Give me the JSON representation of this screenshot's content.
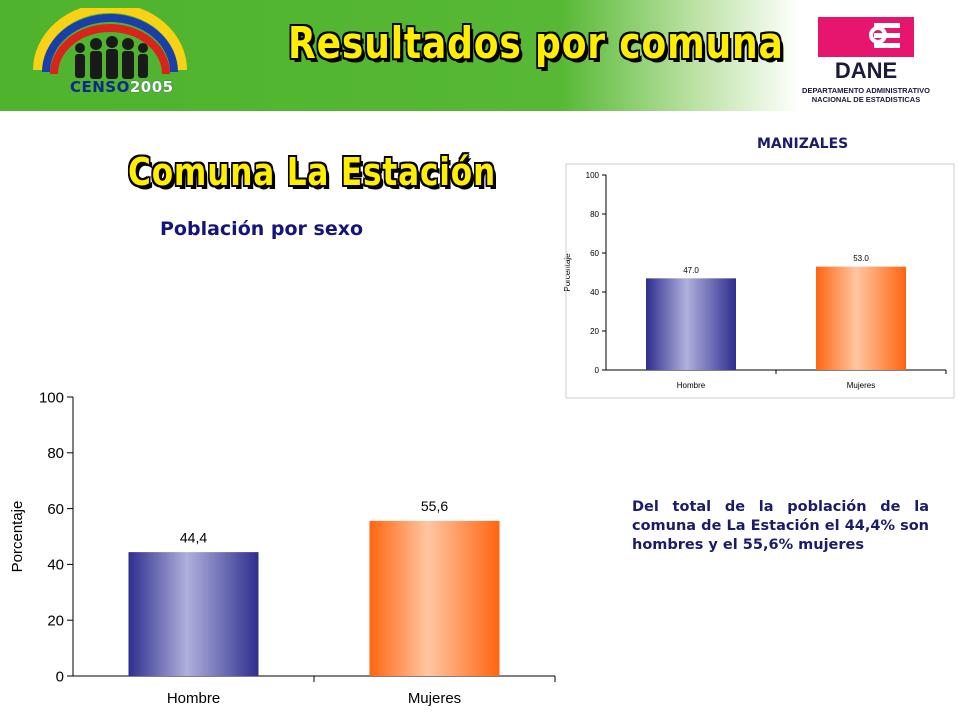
{
  "header": {
    "title": "Resultados por comuna",
    "censo_logo_text": "CENSO",
    "censo_logo_year": "2005",
    "dane_logo_text": "DANE",
    "dane_caption_line1": "DEPARTAMENTO ADMINISTRATIVO",
    "dane_caption_line2": "NACIONAL DE ESTADISTICAS"
  },
  "comuna_title": "Comuna La Estación",
  "section_heading": "Población por sexo",
  "city_label": "MANIZALES",
  "summary_text": "Del total de la población de la comuna de La Estación el 44,4% son hombres y el 55,6% mujeres",
  "colors": {
    "banner_green": "#56b834",
    "title_yellow": "#ffee00",
    "hombre_bar_dark": "#2e2e8f",
    "hombre_bar_light": "#b0b0dc",
    "mujeres_bar_dark": "#ff6510",
    "mujeres_bar_light": "#ffc6a2",
    "dane_magenta": "#e6166e"
  },
  "chart_data": [
    {
      "type": "bar",
      "chart": "comuna",
      "categories": [
        "Hombre",
        "Mujeres"
      ],
      "values": [
        44.4,
        55.6
      ],
      "data_labels": [
        "44,4",
        "55,6"
      ],
      "ylabel": "Porcentaje",
      "ylim": [
        0,
        100
      ],
      "yticks": [
        "0",
        "20",
        "40",
        "60",
        "80",
        "100"
      ],
      "grid": false
    },
    {
      "type": "bar",
      "chart": "manizales",
      "categories": [
        "Hombre",
        "Mujeres"
      ],
      "values": [
        47.0,
        53.0
      ],
      "data_labels": [
        "47.0",
        "53.0"
      ],
      "ylabel": "Porcentaje",
      "ylim": [
        0,
        100
      ],
      "yticks": [
        "0",
        "20",
        "40",
        "60",
        "80",
        "100"
      ],
      "grid": false
    }
  ]
}
